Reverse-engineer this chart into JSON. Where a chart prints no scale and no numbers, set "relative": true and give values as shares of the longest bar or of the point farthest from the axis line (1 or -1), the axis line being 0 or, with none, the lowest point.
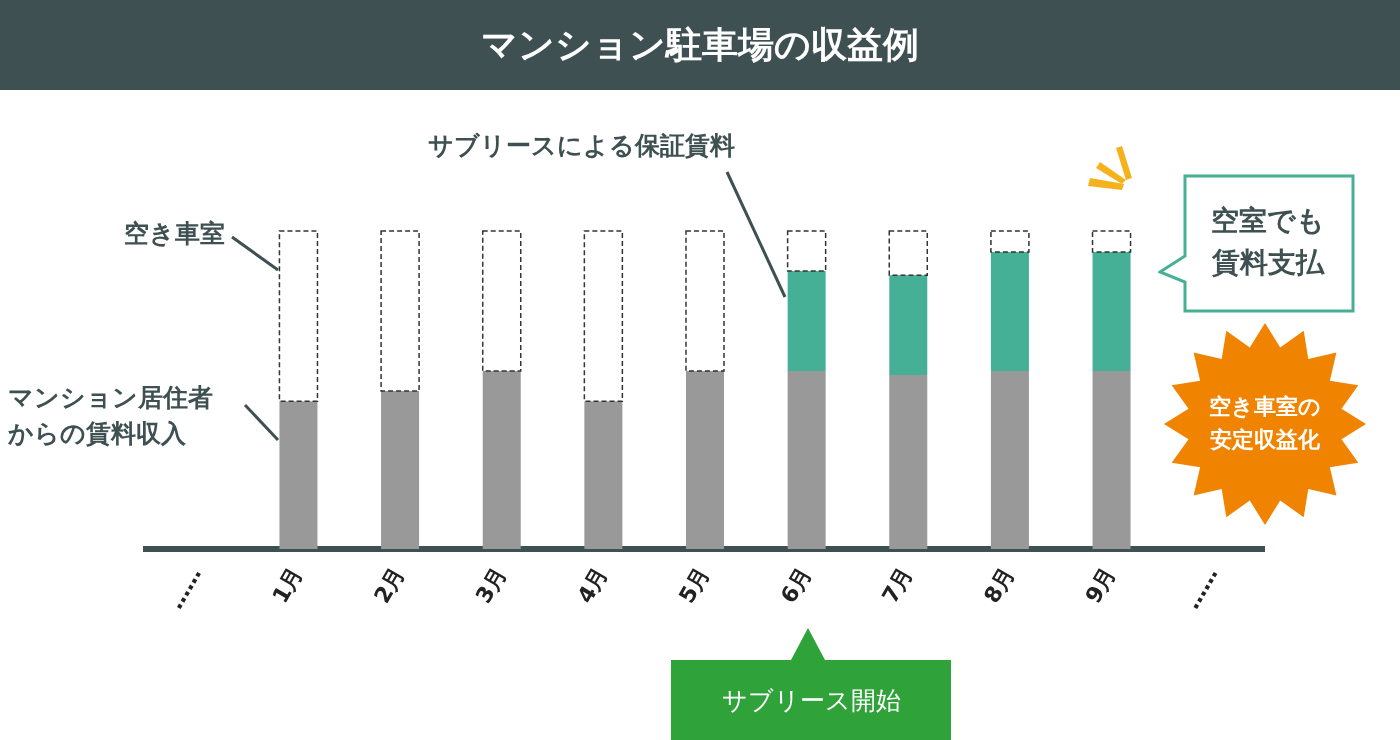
{
  "chart_data": {
    "type": "bar",
    "title": "マンション駐車場の収益例",
    "relative": true,
    "stacked": true,
    "grid": false,
    "legend": false,
    "categories": [
      "……",
      "1月",
      "2月",
      "3月",
      "4月",
      "5月",
      "6月",
      "7月",
      "8月",
      "9月",
      "……"
    ],
    "series": [
      {
        "name": "マンション居住者からの賃料収入",
        "color": "#999999",
        "values": [
          null,
          0.465,
          0.497,
          0.56,
          0.465,
          0.56,
          0.56,
          0.547,
          0.56,
          0.56,
          null
        ]
      },
      {
        "name": "サブリースによる保証賃料",
        "color": "#46b096",
        "values": [
          null,
          null,
          null,
          null,
          null,
          null,
          0.314,
          0.314,
          0.374,
          0.374,
          null
        ]
      },
      {
        "name": "空き車室",
        "color": "#ffffff",
        "line_style": "dashed",
        "values": [
          null,
          0.535,
          0.503,
          0.44,
          0.535,
          0.44,
          0.126,
          0.139,
          0.066,
          0.066,
          null
        ]
      }
    ],
    "annotations": [
      "空室でも賃料支払",
      "空き車室の安定収益化",
      "サブリース開始"
    ]
  }
}
